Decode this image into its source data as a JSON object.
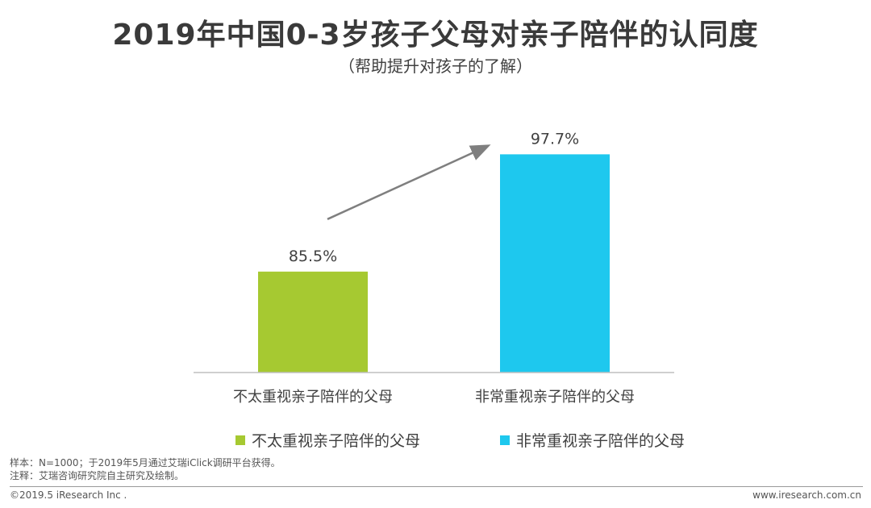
{
  "title": "2019年中国0-3岁孩子父母对亲子陪伴的认同度",
  "subtitle": "（帮助提升对孩子的了解）",
  "chart_data": {
    "type": "bar",
    "categories": [
      "不太重视亲子陪伴的父母",
      "非常重视亲子陪伴的父母"
    ],
    "values": [
      85.5,
      97.7
    ],
    "value_labels": [
      "85.5%",
      "97.7%"
    ],
    "colors": [
      "#a6c931",
      "#1ec8ee"
    ],
    "ylim": [
      0,
      100
    ],
    "grid": false,
    "legend_position": "bottom",
    "annotation": "arrow-up-right"
  },
  "legend": {
    "items": [
      {
        "label": "不太重视亲子陪伴的父母",
        "color": "#a6c931"
      },
      {
        "label": "非常重视亲子陪伴的父母",
        "color": "#1ec8ee"
      }
    ]
  },
  "notes": {
    "sample": "样本：N=1000；于2019年5月通过艾瑞iClick调研平台获得。",
    "source": "注释：艾瑞咨询研究院自主研究及绘制。"
  },
  "footer": {
    "copyright": "©2019.5 iResearch Inc .",
    "website": "www.iresearch.com.cn"
  }
}
